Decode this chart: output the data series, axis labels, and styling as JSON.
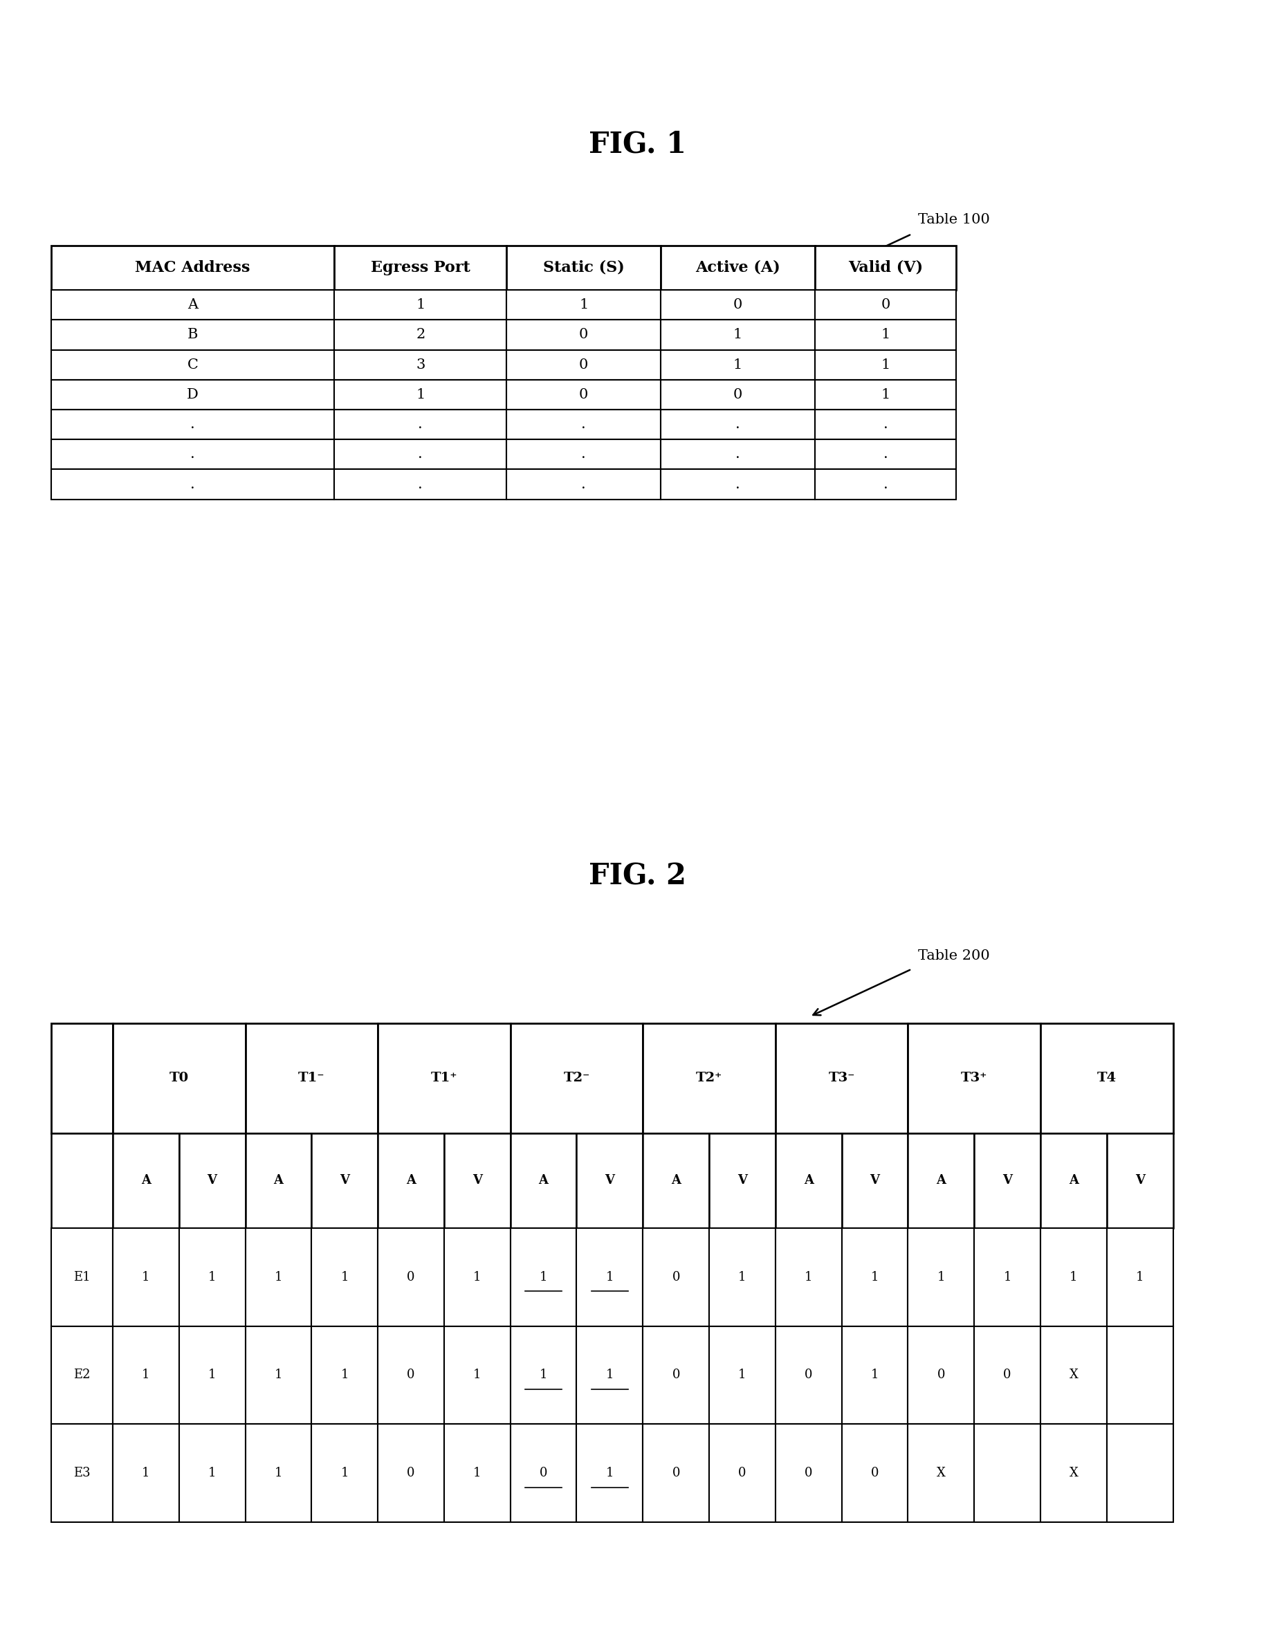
{
  "fig1_title": "FIG. 1",
  "table1_label": "Table 100",
  "table1_headers": [
    "MAC Address",
    "Egress Port",
    "Static (S)",
    "Active (A)",
    "Valid (V)"
  ],
  "table1_data": [
    [
      "A",
      "1",
      "1",
      "0",
      "0"
    ],
    [
      "B",
      "2",
      "0",
      "1",
      "1"
    ],
    [
      "C",
      "3",
      "0",
      "1",
      "1"
    ],
    [
      "D",
      "1",
      "0",
      "0",
      "1"
    ],
    [
      ".",
      ".",
      ".",
      ".",
      "."
    ],
    [
      ".",
      ".",
      ".",
      ".",
      "."
    ],
    [
      ".",
      ".",
      ".",
      ".",
      "."
    ]
  ],
  "fig2_title": "FIG. 2",
  "table2_label": "Table 200",
  "table2_top_headers": [
    "",
    "T0",
    "T1⁻",
    "T1⁺",
    "T2⁻",
    "T2⁺",
    "T3⁻",
    "T3⁺",
    "T4"
  ],
  "table2_sub_headers": [
    "",
    "A",
    "V",
    "A",
    "V",
    "A",
    "V",
    "A",
    "V",
    "A",
    "V",
    "A",
    "V",
    "A",
    "V",
    "A",
    "V"
  ],
  "table2_data": [
    [
      "E1",
      "1",
      "1",
      "1",
      "1",
      "0",
      "1",
      "1",
      "1",
      "0",
      "1",
      "1",
      "1",
      "1",
      "1",
      "1",
      "1"
    ],
    [
      "E2",
      "1",
      "1",
      "1",
      "1",
      "0",
      "1",
      "1",
      "1",
      "0",
      "1",
      "0",
      "1",
      "0",
      "0",
      "X",
      ""
    ],
    [
      "E3",
      "1",
      "1",
      "1",
      "1",
      "0",
      "1",
      "0",
      "1",
      "0",
      "0",
      "0",
      "0",
      "X",
      "",
      "X",
      ""
    ]
  ],
  "t2_underline_cols": [
    7,
    8
  ],
  "t2_underline_rows_by_col": {
    "7": [
      0,
      1,
      2
    ],
    "8": [
      0,
      1,
      2
    ]
  },
  "background_color": "#ffffff"
}
